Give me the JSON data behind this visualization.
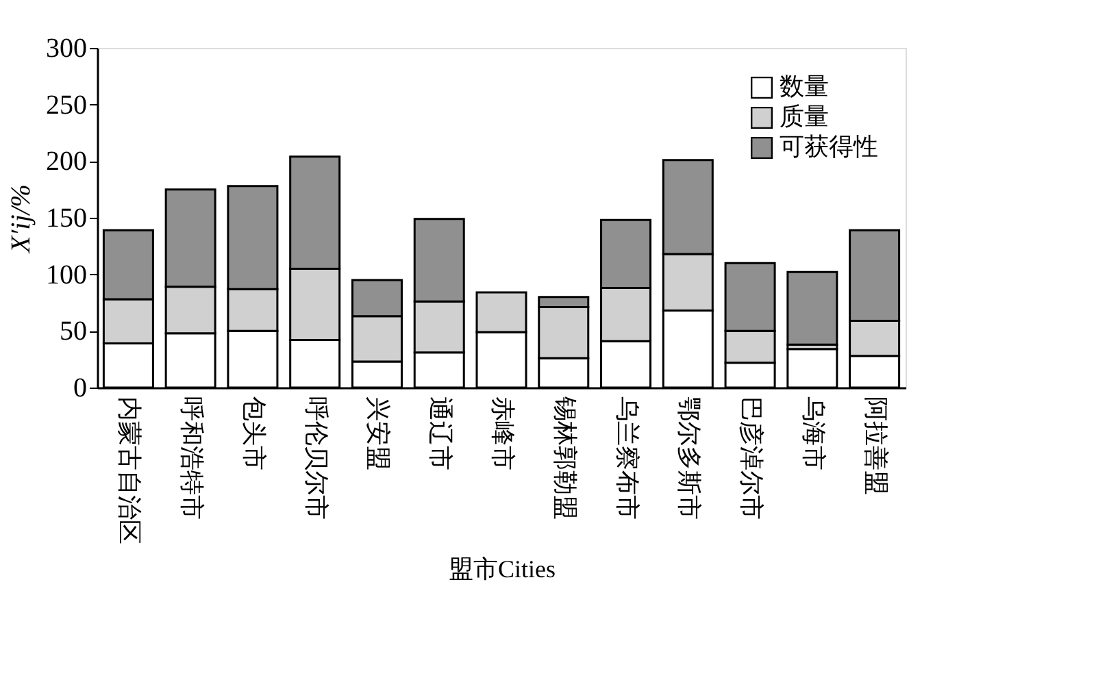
{
  "chart_data": {
    "type": "bar",
    "stacked": true,
    "xlabel": "盟市Cities",
    "ylabel": "X′ij/%",
    "categories": [
      "内蒙古自治区",
      "呼和浩特市",
      "包头市",
      "呼伦贝尔市",
      "兴安盟",
      "通辽市",
      "赤峰市",
      "锡林郭勒盟",
      "乌兰察布市",
      "鄂尔多斯市",
      "巴彦淖尔市",
      "乌海市",
      "阿拉善盟"
    ],
    "series": [
      {
        "name": "数量",
        "color": "#ffffff",
        "values": [
          39,
          48,
          50,
          42,
          23,
          31,
          49,
          26,
          41,
          68,
          22,
          34,
          28
        ]
      },
      {
        "name": "质量",
        "color": "#d0d0d0",
        "values": [
          39,
          41,
          37,
          63,
          40,
          45,
          35,
          45,
          47,
          50,
          28,
          4,
          31
        ]
      },
      {
        "name": "可获得性",
        "color": "#909090",
        "values": [
          61,
          86,
          91,
          99,
          32,
          73,
          null,
          9,
          60,
          83,
          60,
          64,
          80
        ]
      }
    ],
    "ylim": [
      0,
      300
    ],
    "yticks": [
      0,
      50,
      100,
      150,
      200,
      250,
      300
    ],
    "grid": false,
    "legend": "top right"
  }
}
